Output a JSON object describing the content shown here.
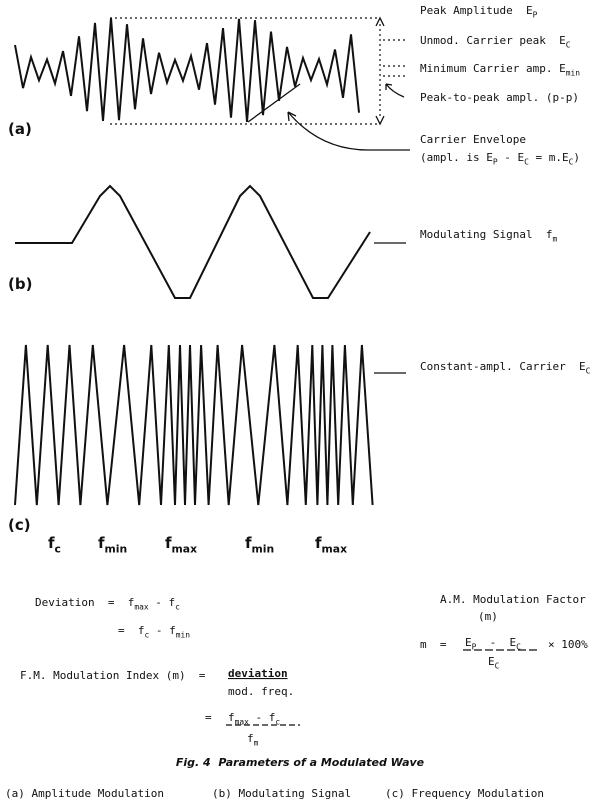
{
  "panel_a": {
    "label": "(a)",
    "annotations": [
      [
        "Peak Amplitude  E",
        "P"
      ],
      [
        "Unmod. Carrier peak  E",
        "C"
      ],
      [
        "Minimum Carrier amp. E",
        "min"
      ],
      [
        "Peak-to-peak ampl. (p-p)"
      ],
      [
        "Carrier Envelope"
      ],
      [
        "(ampl. is E",
        "P",
        " - E",
        "C",
        " = m.E",
        "C",
        ")"
      ]
    ]
  },
  "panel_b": {
    "label": "(b)",
    "annotation": [
      "Modulating Signal  f",
      "m"
    ]
  },
  "panel_c": {
    "label": "(c)",
    "annotation": [
      "Constant-ampl. Carrier  E",
      "C"
    ],
    "frequency_labels": [
      [
        "f",
        "c"
      ],
      [
        "f",
        "min"
      ],
      [
        "f",
        "max"
      ],
      [
        "f",
        "min"
      ],
      [
        "f",
        "max"
      ]
    ]
  },
  "formulas": {
    "deviation": {
      "line1": [
        "Deviation  =  f",
        "max",
        " - f",
        "c"
      ],
      "line2": [
        "=  f",
        "c",
        " - f",
        "min"
      ]
    },
    "fm_index": {
      "lhs": "F.M. Modulation Index (m)  =",
      "numerator": "deviation",
      "denominator": "mod. freq.",
      "eq2": "=",
      "numerator2": [
        "f",
        "max",
        " - f",
        "c"
      ],
      "denominator2": [
        "f",
        "m"
      ]
    },
    "am_factor": {
      "title": "A.M. Modulation Factor",
      "title_sym": "(m)",
      "lhs": "m  =",
      "numerator": [
        "E",
        "P",
        "  -  E",
        "C"
      ],
      "denominator": [
        "E",
        "C"
      ],
      "suffix": "× 100%"
    }
  },
  "caption": {
    "title": "Fig. 4  Parameters of a Modulated Wave",
    "items": [
      "(a) Amplitude Modulation",
      "(b) Modulating Signal",
      "(c) Frequency Modulation"
    ]
  }
}
